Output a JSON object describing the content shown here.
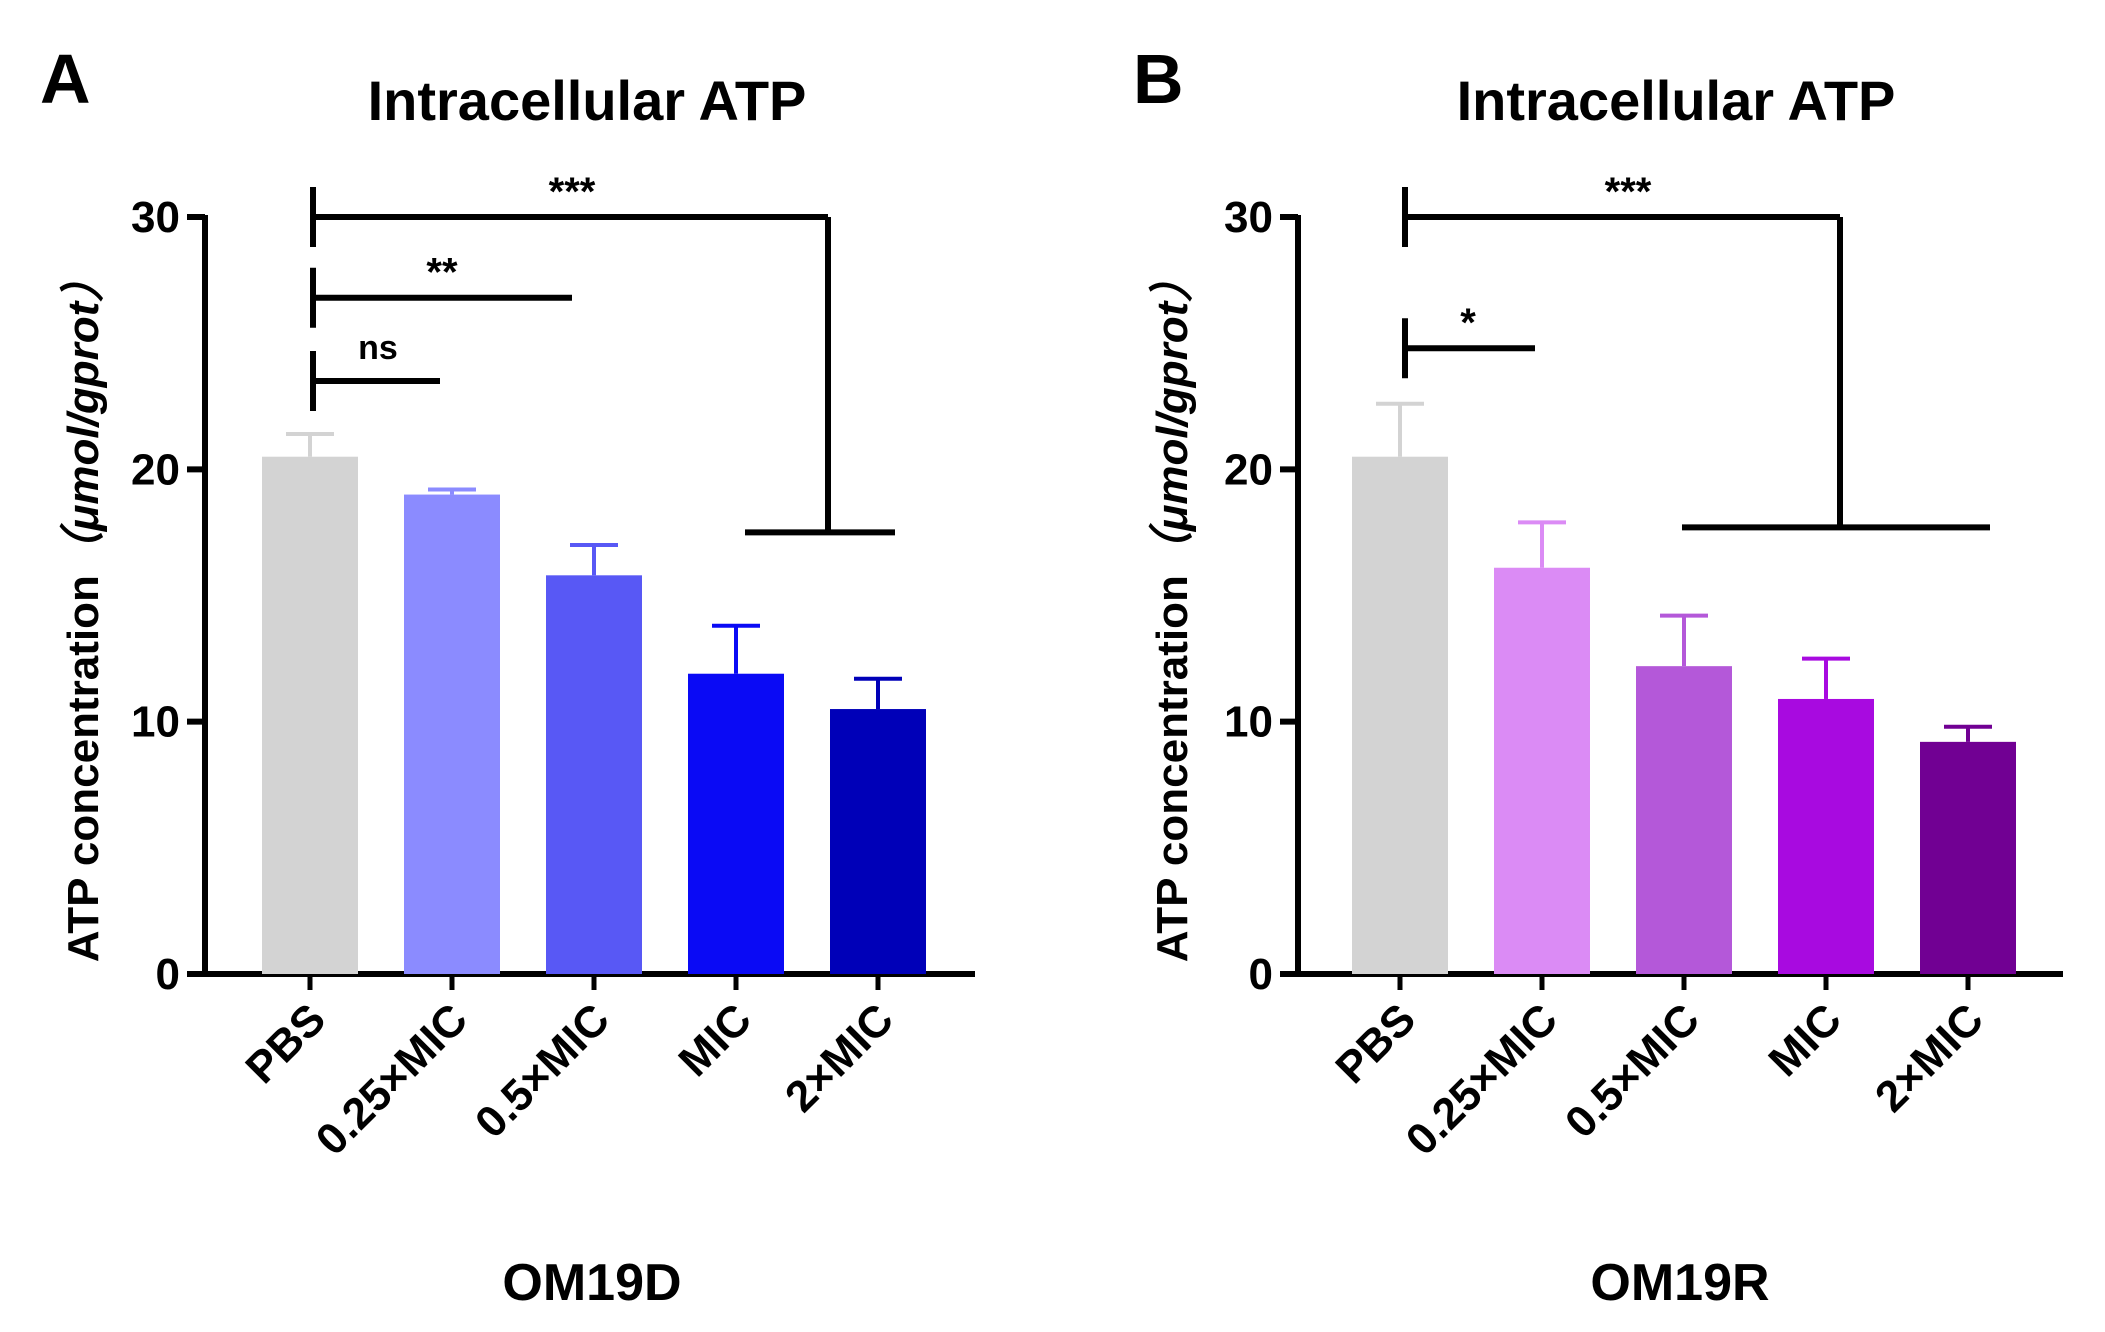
{
  "chart_data": [
    {
      "type": "bar",
      "panel": "A",
      "title": "Intracellular ATP",
      "xlabel": "OM19D",
      "ylabel": "ATP concentration",
      "ylabel_unit": "（μmol/gprot）",
      "ylim": [
        0,
        30
      ],
      "yticks": [
        "0",
        "10",
        "20",
        "30"
      ],
      "categories": [
        "PBS",
        "0.25×MIC",
        "0.5×MIC",
        "MIC",
        "2×MIC"
      ],
      "values": [
        20.5,
        19.0,
        15.8,
        11.9,
        10.5
      ],
      "errors": [
        0.9,
        0.2,
        1.2,
        1.9,
        1.2
      ],
      "colors": [
        "#d3d3d3",
        "#8b8bff",
        "#5858f5",
        "#0a0af5",
        "#0000b8"
      ],
      "annotations": [
        {
          "label": "ns",
          "y": 23.5,
          "to_y": 23.5
        },
        {
          "label": "**",
          "y": 26.8,
          "to_y": 26.8
        },
        {
          "label": "***",
          "y": 30,
          "to_y": 17.5
        }
      ]
    },
    {
      "type": "bar",
      "panel": "B",
      "title": "Intracellular ATP",
      "xlabel": "OM19R",
      "ylabel": "ATP concentration",
      "ylabel_unit": "（μmol/gprot）",
      "ylim": [
        0,
        30
      ],
      "yticks": [
        "0",
        "10",
        "20",
        "30"
      ],
      "categories": [
        "PBS",
        "0.25×MIC",
        "0.5×MIC",
        "MIC",
        "2×MIC"
      ],
      "values": [
        20.5,
        16.1,
        12.2,
        10.9,
        9.2
      ],
      "errors": [
        2.1,
        1.8,
        2.0,
        1.6,
        0.6
      ],
      "colors": [
        "#d3d3d3",
        "#db8bf5",
        "#b458d9",
        "#a80ae0",
        "#710093"
      ],
      "annotations": [
        {
          "label": "*",
          "y": 24.8,
          "to_y": 24.8
        },
        {
          "label": "***",
          "y": 30,
          "to_y": 17.7
        }
      ]
    }
  ]
}
